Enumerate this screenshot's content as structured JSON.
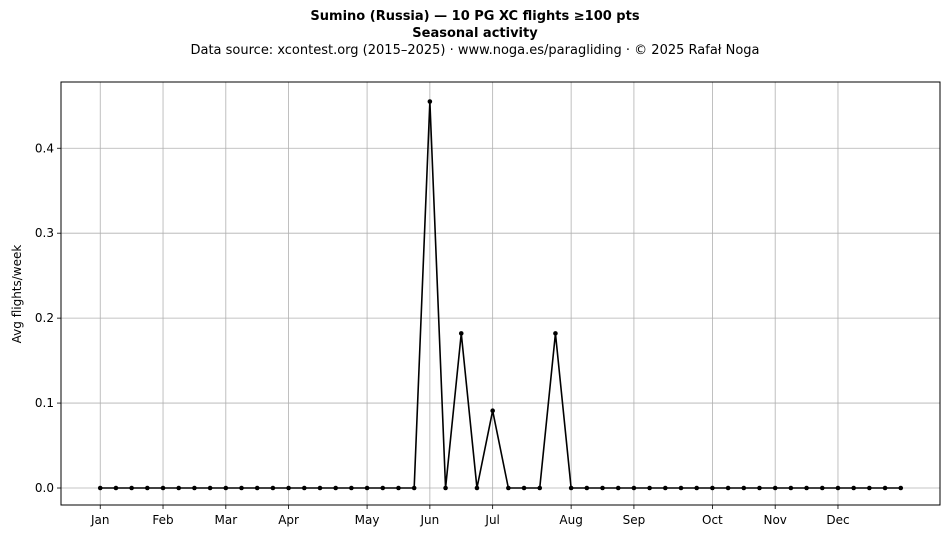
{
  "chart_data": {
    "type": "line",
    "title": "Sumino (Russia)  —  10 PG XC flights ≥100 pts",
    "title2": "Seasonal activity",
    "subtitle": "Data source: xcontest.org (2015–2025)  ·  www.noga.es/paragliding  ·  © 2025 Rafał Noga",
    "xlabel": "",
    "ylabel": "Avg flights/week",
    "ylim": [
      -0.02,
      0.478
    ],
    "xlim": [
      -2.5,
      53.5
    ],
    "grid": true,
    "legend": "none",
    "line_color": "#000000",
    "month_ticks": [
      {
        "label": "Jan",
        "week": 0
      },
      {
        "label": "Feb",
        "week": 4
      },
      {
        "label": "Mar",
        "week": 8
      },
      {
        "label": "Apr",
        "week": 12
      },
      {
        "label": "May",
        "week": 17
      },
      {
        "label": "Jun",
        "week": 21
      },
      {
        "label": "Jul",
        "week": 25
      },
      {
        "label": "Aug",
        "week": 30
      },
      {
        "label": "Sep",
        "week": 34
      },
      {
        "label": "Oct",
        "week": 39
      },
      {
        "label": "Nov",
        "week": 43
      },
      {
        "label": "Dec",
        "week": 47
      }
    ],
    "y_ticks": [
      0.0,
      0.1,
      0.2,
      0.3,
      0.4
    ],
    "y_tick_labels": [
      "0.0",
      "0.1",
      "0.2",
      "0.3",
      "0.4"
    ],
    "x": [
      0,
      1,
      2,
      3,
      4,
      5,
      6,
      7,
      8,
      9,
      10,
      11,
      12,
      13,
      14,
      15,
      16,
      17,
      18,
      19,
      20,
      21,
      22,
      23,
      24,
      25,
      26,
      27,
      28,
      29,
      30,
      31,
      32,
      33,
      34,
      35,
      36,
      37,
      38,
      39,
      40,
      41,
      42,
      43,
      44,
      45,
      46,
      47,
      48,
      49,
      50,
      51
    ],
    "values": [
      0,
      0,
      0,
      0,
      0,
      0,
      0,
      0,
      0,
      0,
      0,
      0,
      0,
      0,
      0,
      0,
      0,
      0,
      0,
      0,
      0,
      0.455,
      0,
      0.182,
      0,
      0.091,
      0,
      0,
      0,
      0.182,
      0,
      0,
      0,
      0,
      0,
      0,
      0,
      0,
      0,
      0,
      0,
      0,
      0,
      0,
      0,
      0,
      0,
      0,
      0,
      0,
      0,
      0
    ]
  }
}
